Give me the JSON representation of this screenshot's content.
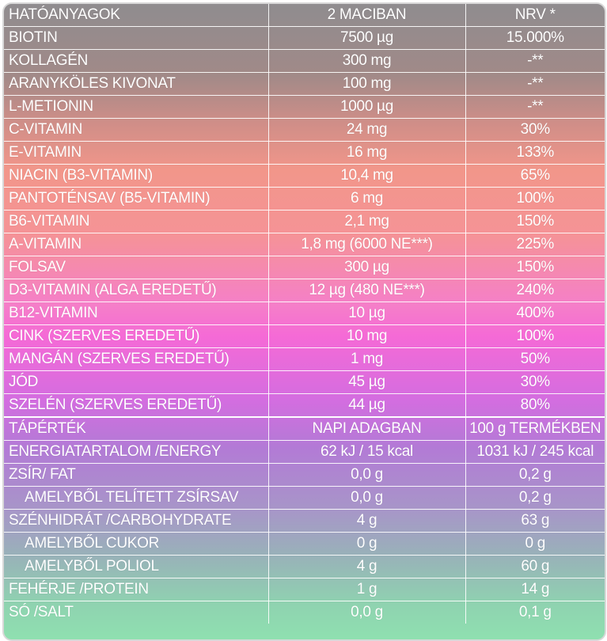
{
  "ingredients_header": {
    "name": "HATÓANYAGOK",
    "amount": "2 MACIBAN",
    "nrv": "NRV *"
  },
  "ingredients": [
    {
      "name": "BIOTIN",
      "amount": "7500 µg",
      "nrv": "15.000%"
    },
    {
      "name": "KOLLAGÉN",
      "amount": "300 mg",
      "nrv": "-**"
    },
    {
      "name": "ARANYKÖLES KIVONAT",
      "amount": "100 mg",
      "nrv": "-**"
    },
    {
      "name": "L-METIONIN",
      "amount": "1000 µg",
      "nrv": "-**"
    },
    {
      "name": "C-VITAMIN",
      "amount": "24 mg",
      "nrv": "30%"
    },
    {
      "name": "E-VITAMIN",
      "amount": "16 mg",
      "nrv": "133%"
    },
    {
      "name": "NIACIN (B3-VITAMIN)",
      "amount": "10,4 mg",
      "nrv": "65%"
    },
    {
      "name": "PANTOTÉNSAV (B5-VITAMIN)",
      "amount": "6 mg",
      "nrv": "100%"
    },
    {
      "name": "B6-VITAMIN",
      "amount": "2,1 mg",
      "nrv": "150%"
    },
    {
      "name": "A-VITAMIN",
      "amount": "1,8 mg (6000 NE***)",
      "nrv": "225%"
    },
    {
      "name": "FOLSAV",
      "amount": "300 µg",
      "nrv": "150%"
    },
    {
      "name": "D3-VITAMIN (ALGA EREDETŰ)",
      "amount": "12 µg (480 NE***)",
      "nrv": "240%"
    },
    {
      "name": "B12-VITAMIN",
      "amount": "10 µg",
      "nrv": "400%"
    },
    {
      "name": "CINK (SZERVES EREDETŰ)",
      "amount": "10 mg",
      "nrv": "100%"
    },
    {
      "name": "MANGÁN (SZERVES EREDETŰ)",
      "amount": "1 mg",
      "nrv": "50%"
    },
    {
      "name": "JÓD",
      "amount": "45 µg",
      "nrv": "30%"
    },
    {
      "name": "SZELÉN (SZERVES EREDETŰ)",
      "amount": "44 µg",
      "nrv": "80%"
    }
  ],
  "nutrition_header": {
    "name": "TÁPÉRTÉK",
    "per_dose": "NAPI ADAGBAN",
    "per_100g": "100 g TERMÉKBEN"
  },
  "nutrition": [
    {
      "name": "ENERGIATARTALOM /ENERGY",
      "per_dose": "62 kJ / 15 kcal",
      "per_100g": "1031 kJ / 245 kcal"
    },
    {
      "name": "ZSÍR/ FAT",
      "per_dose": "0,0 g",
      "per_100g": "0,2 g"
    },
    {
      "name": "AMELYBŐL TELÍTETT ZSÍRSAV",
      "per_dose": "0,0 g",
      "per_100g": "0,2 g"
    },
    {
      "name": "SZÉNHIDRÁT /CARBOHYDRATE",
      "per_dose": "4 g",
      "per_100g": "63 g"
    },
    {
      "name": "AMELYBŐL CUKOR",
      "per_dose": "0 g",
      "per_100g": "0 g"
    },
    {
      "name": "AMELYBŐL POLIOL",
      "per_dose": "4 g",
      "per_100g": "60 g"
    },
    {
      "name": "FEHÉRJE /PROTEIN",
      "per_dose": "1 g",
      "per_100g": "14 g"
    },
    {
      "name": "SÓ /SALT",
      "per_dose": "0,0 g",
      "per_100g": "0,1 g"
    }
  ]
}
